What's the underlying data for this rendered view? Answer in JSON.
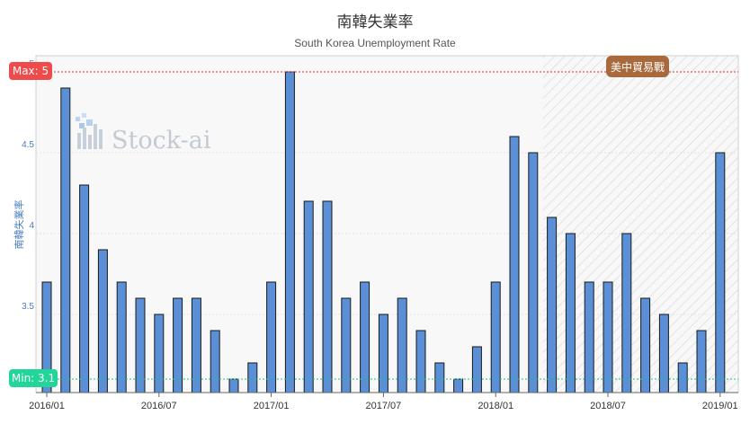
{
  "chart_data": {
    "type": "bar",
    "title": "南韓失業率",
    "subtitle": "South Korea Unemployment Rate",
    "ylabel": "南韓失業率",
    "ylim": [
      3.1,
      5
    ],
    "yticks": [
      "5",
      "4.5",
      "4",
      "3.5"
    ],
    "x_tick_labels": [
      "2016/01",
      "2016/07",
      "2017/01",
      "2017/07",
      "2018/01",
      "2018/07",
      "2019/01"
    ],
    "categories": [
      "2016/01",
      "2016/02",
      "2016/03",
      "2016/04",
      "2016/05",
      "2016/06",
      "2016/07",
      "2016/08",
      "2016/09",
      "2016/10",
      "2016/11",
      "2016/12",
      "2017/01",
      "2017/02",
      "2017/03",
      "2017/04",
      "2017/05",
      "2017/06",
      "2017/07",
      "2017/08",
      "2017/09",
      "2017/10",
      "2017/11",
      "2017/12",
      "2018/01",
      "2018/02",
      "2018/03",
      "2018/04",
      "2018/05",
      "2018/06",
      "2018/07",
      "2018/08",
      "2018/09",
      "2018/10",
      "2018/11",
      "2018/12",
      "2019/01"
    ],
    "values": [
      3.7,
      4.9,
      4.3,
      3.9,
      3.7,
      3.6,
      3.5,
      3.6,
      3.6,
      3.4,
      3.1,
      3.2,
      3.7,
      5.0,
      4.2,
      4.2,
      3.6,
      3.7,
      3.5,
      3.6,
      3.4,
      3.2,
      3.1,
      3.3,
      3.7,
      4.6,
      4.5,
      4.1,
      4.0,
      3.7,
      3.7,
      4.0,
      3.6,
      3.5,
      3.2,
      3.4,
      4.5
    ],
    "max_label": "Max: 5",
    "min_label": "Min: 3.1",
    "event_label": "美中貿易戰",
    "event_start": "2018/04",
    "watermark": "Stock-ai",
    "colors": {
      "bar_fill": "#5b8fd6",
      "bar_stroke": "#1a1a1a",
      "max_line": "#d9302c",
      "min_line": "#1fbf8a",
      "max_badge": "#ef4b4b",
      "min_badge": "#22d69a",
      "event_badge": "#a86a3c",
      "plot_bg": "#f8f8f8",
      "hatch": "#d5d5d5"
    },
    "grid": true
  }
}
